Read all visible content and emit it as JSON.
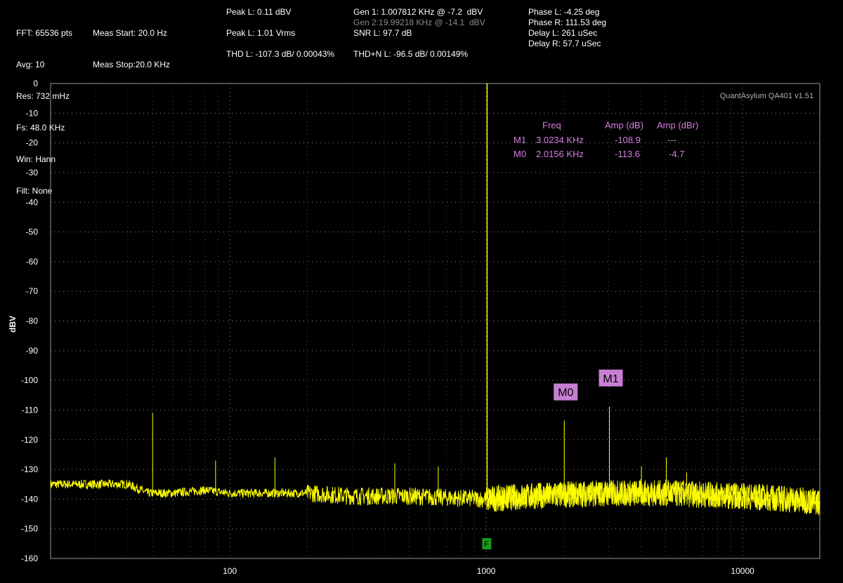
{
  "header": {
    "col1": [
      "FFT: 65536 pts",
      "Avg: 10",
      "Res: 732 mHz",
      "Fs: 48.0 KHz",
      "Win: Hann",
      "Filt: None"
    ],
    "col2": [
      "Meas Start: 20.0 Hz",
      "Meas Stop:20.0 KHz"
    ],
    "peak_l_dbv": "Peak L: 0.11 dBV",
    "peak_l_vrms": "Peak L: 1.01 Vrms",
    "thd_l": "THD L: -107.3 dB/ 0.00043%",
    "gen1": "Gen 1: 1.007812 KHz @ -7.2  dBV",
    "gen2": "Gen 2:19.99218 KHz @ -14.1  dBV",
    "snr_l": "SNR L: 97.7 dB",
    "thdn_l": "THD+N L: -96.5 dB/ 0.00149%",
    "phase_l": "Phase L: -4.25 deg",
    "phase_r": "Phase R: 111.53 deg",
    "delay_l": "Delay L: 261 uSec",
    "delay_r": "Delay R: 57.7 uSec"
  },
  "brand": "QuantAsylum QA401 v1.51",
  "marker_table": {
    "headers": [
      "Freq",
      "Amp (dB)",
      "Amp (dBr)"
    ],
    "rows": [
      {
        "id": "M1",
        "freq": "3.0234 KHz",
        "amp_db": "-108.9",
        "amp_dbr": "---"
      },
      {
        "id": "M0",
        "freq": "2.0156 KHz",
        "amp_db": "-113.6",
        "amp_dbr": "-4.7"
      }
    ]
  },
  "colors": {
    "trace": "#ffff00",
    "marker": "#c77fd3",
    "marker_text": "#d77ee0",
    "f_marker": "#1a9a1a",
    "grid": "#8a8a8a"
  },
  "chart_data": {
    "type": "line",
    "xscale": "log",
    "xlim": [
      20,
      20000
    ],
    "ylim": [
      -160,
      0
    ],
    "ylabel": "dBV",
    "xlabel": "",
    "grid": true,
    "xticks": [
      100,
      1000,
      10000
    ],
    "xtick_labels": [
      "100",
      "1000",
      "10000"
    ],
    "yticks": [
      0,
      -10,
      -20,
      -30,
      -40,
      -50,
      -60,
      -70,
      -80,
      -90,
      -100,
      -110,
      -120,
      -130,
      -140,
      -150,
      -160
    ],
    "yticks_labels": [
      "0",
      "-10",
      "-20",
      "-30",
      "-40",
      "-50",
      "-60",
      "-70",
      "-80",
      "-90",
      "-100",
      "-110",
      "-120",
      "-130",
      "-140",
      "-150",
      "-160"
    ],
    "noise_floor": [
      [
        20,
        -135
      ],
      [
        30,
        -135
      ],
      [
        40,
        -135
      ],
      [
        48,
        -138
      ],
      [
        60,
        -138
      ],
      [
        80,
        -137
      ],
      [
        100,
        -138
      ],
      [
        150,
        -138
      ],
      [
        200,
        -138
      ],
      [
        300,
        -139
      ],
      [
        500,
        -139
      ],
      [
        700,
        -139.5
      ],
      [
        1000,
        -140
      ],
      [
        1500,
        -139
      ],
      [
        2000,
        -138.5
      ],
      [
        3000,
        -138
      ],
      [
        5000,
        -138
      ],
      [
        7000,
        -138.5
      ],
      [
        10000,
        -139
      ],
      [
        15000,
        -140
      ],
      [
        20000,
        -141
      ]
    ],
    "peaks": [
      {
        "x": 50,
        "y": -111
      },
      {
        "x": 88,
        "y": -127
      },
      {
        "x": 150,
        "y": -126
      },
      {
        "x": 440,
        "y": -128
      },
      {
        "x": 650,
        "y": -129
      },
      {
        "x": 1007.8,
        "y": 0
      },
      {
        "x": 2015.6,
        "y": -113.6
      },
      {
        "x": 3023.4,
        "y": -108.9
      },
      {
        "x": 4031,
        "y": -129
      },
      {
        "x": 5039,
        "y": -126
      },
      {
        "x": 6047,
        "y": -131
      }
    ],
    "markers": [
      {
        "label": "M0",
        "x": 2015.6,
        "y": -113.6
      },
      {
        "label": "M1",
        "x": 3023.4,
        "y": -108.9
      }
    ],
    "f_marker": {
      "label": "F",
      "x": 1007.8
    }
  }
}
